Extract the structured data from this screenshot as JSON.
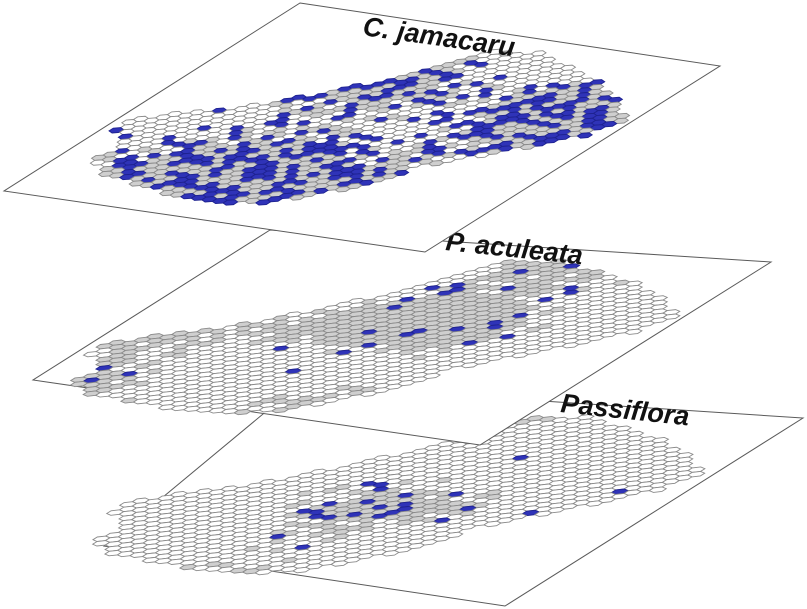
{
  "panels": [
    {
      "id": "panel-3",
      "title": "Passiflora",
      "grey_ratio": 0.25,
      "blue_ratio": 0.035,
      "seed": 31,
      "colors": {
        "occupied": "#cfcfcf",
        "presence": "#2f33b8",
        "empty": "#ffffff"
      }
    },
    {
      "id": "panel-2",
      "title": "P. aculeata",
      "grey_ratio": 0.45,
      "blue_ratio": 0.03,
      "seed": 17,
      "colors": {
        "occupied": "#cfcfcf",
        "presence": "#2f33b8",
        "empty": "#ffffff"
      }
    },
    {
      "id": "panel-1",
      "title": "C. jamacaru",
      "grey_ratio": 0.62,
      "blue_ratio": 0.28,
      "seed": 7,
      "colors": {
        "occupied": "#cfcfcf",
        "presence": "#2f33b8",
        "empty": "#ffffff"
      }
    }
  ]
}
